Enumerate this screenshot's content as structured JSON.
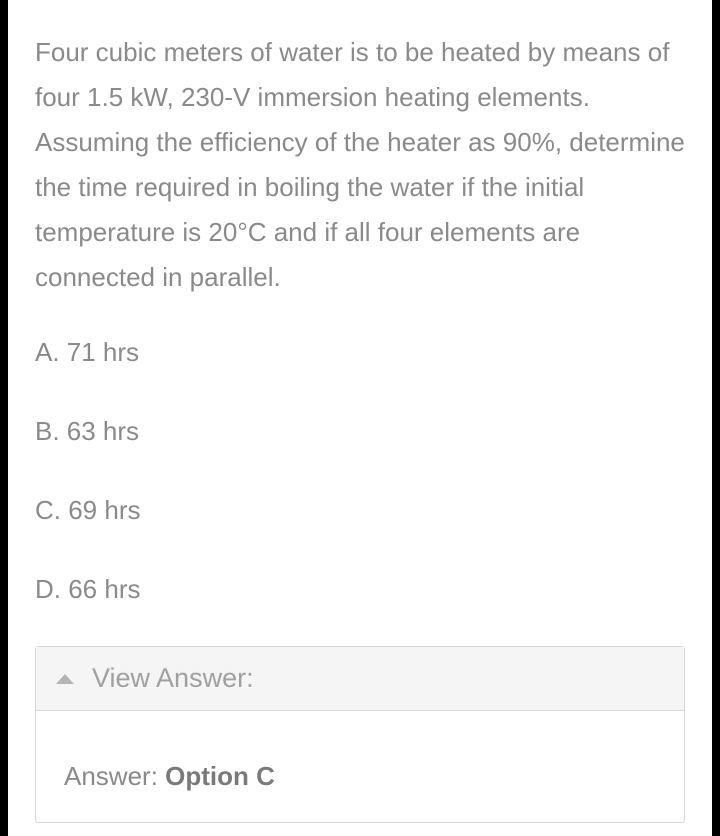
{
  "question": "Four cubic meters of water is to be heated by means of four 1.5 kW, 230-V immersion heating elements. Assuming the efficiency of the heater as 90%, determine the time required in boiling the water if the initial temperature is 20°C and if all four elements are connected in parallel.",
  "options": {
    "a": "A. 71 hrs",
    "b": "B. 63 hrs",
    "c": "C. 69 hrs",
    "d": "D. 66 hrs"
  },
  "accordion": {
    "title": "View Answer:",
    "answer_prefix": "Answer: ",
    "answer_value": "Option C"
  },
  "colors": {
    "page_bg": "#000000",
    "card_bg": "#ffffff",
    "text": "#8a8a8a",
    "accordion_header_bg": "#f5f5f5",
    "accordion_border": "#d8d8d8",
    "accordion_title": "#a0a0a0",
    "triangle": "#b5b5b5",
    "bold_text": "#7a7a7a"
  },
  "typography": {
    "body_fontsize": 26,
    "body_lineheight": 45,
    "body_weight": 300,
    "accordion_title_fontsize": 27,
    "bold_weight": 700
  }
}
